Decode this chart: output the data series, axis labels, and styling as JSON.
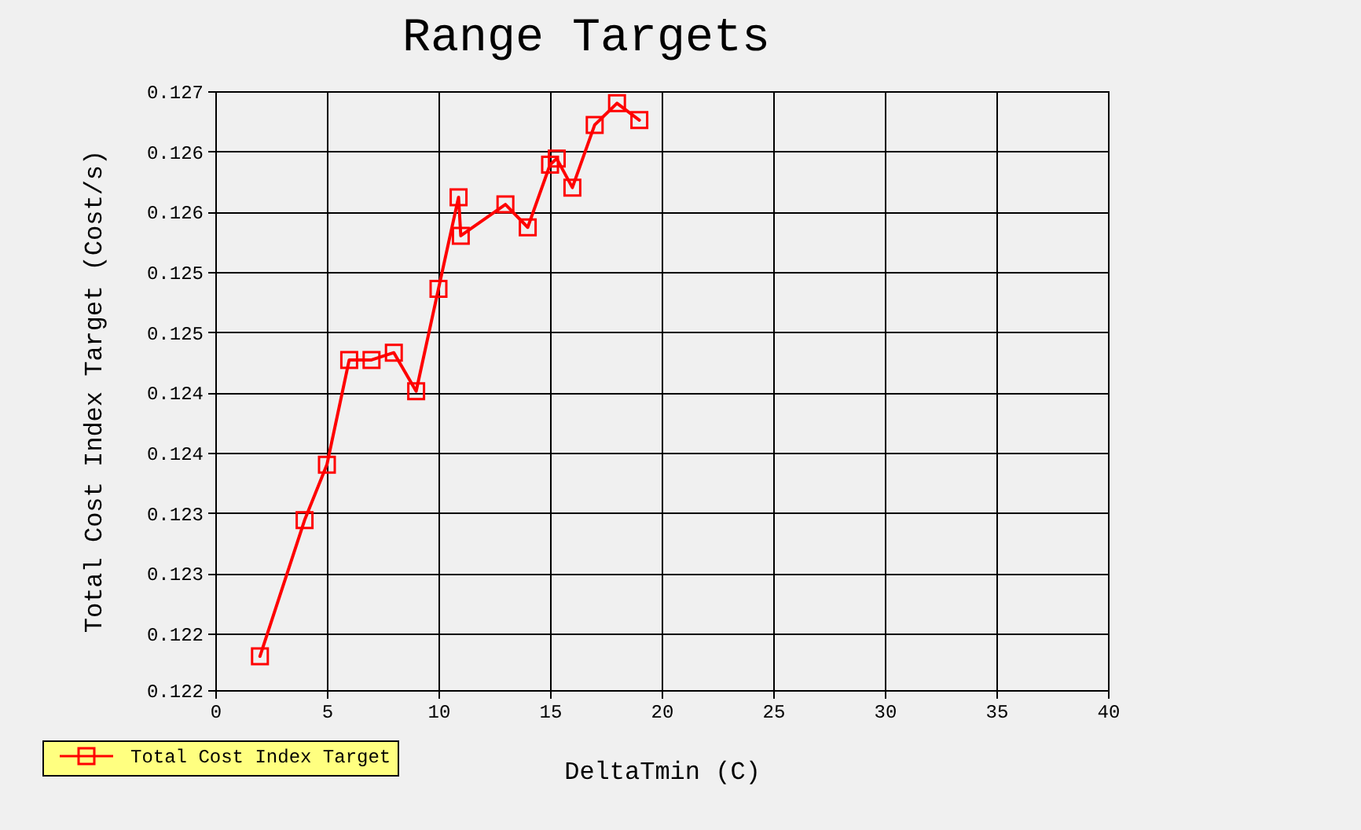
{
  "chart_data": {
    "type": "line",
    "title": "Range Targets",
    "xlabel": "DeltaTmin (C)",
    "ylabel": "Total Cost Index Target (Cost/s)",
    "x": [
      2,
      4,
      5,
      6,
      7,
      8,
      9,
      10,
      10.9,
      11,
      13,
      14,
      15,
      15.3,
      16,
      17,
      18,
      19
    ],
    "series": [
      {
        "name": "Total Cost Index Target",
        "color": "#ff0000",
        "values": [
          0.12231,
          0.12344,
          0.1239,
          0.12477,
          0.12477,
          0.12483,
          0.12451,
          0.12536,
          0.12612,
          0.1258,
          0.12606,
          0.12587,
          0.12639,
          0.12644,
          0.1262,
          0.12672,
          0.1269,
          0.12676
        ]
      }
    ],
    "xlim": [
      0,
      40
    ],
    "xticks": [
      0,
      5,
      10,
      15,
      20,
      25,
      30,
      35,
      40
    ],
    "ylim": [
      0.12203,
      0.127
    ],
    "yticks": [
      {
        "value": 0.12203,
        "label": "0.122"
      },
      {
        "value": 0.1225,
        "label": "0.122"
      },
      0.123,
      {
        "value": 0.1235,
        "label": "0.123"
      },
      0.124,
      {
        "value": 0.1245,
        "label": "0.124"
      },
      0.125,
      {
        "value": 0.1255,
        "label": "0.125"
      },
      0.126,
      {
        "value": 0.1265,
        "label": "0.126"
      },
      0.127
    ],
    "legend": "bottom left",
    "grid": true,
    "marker": "square",
    "line_style": "solid"
  }
}
